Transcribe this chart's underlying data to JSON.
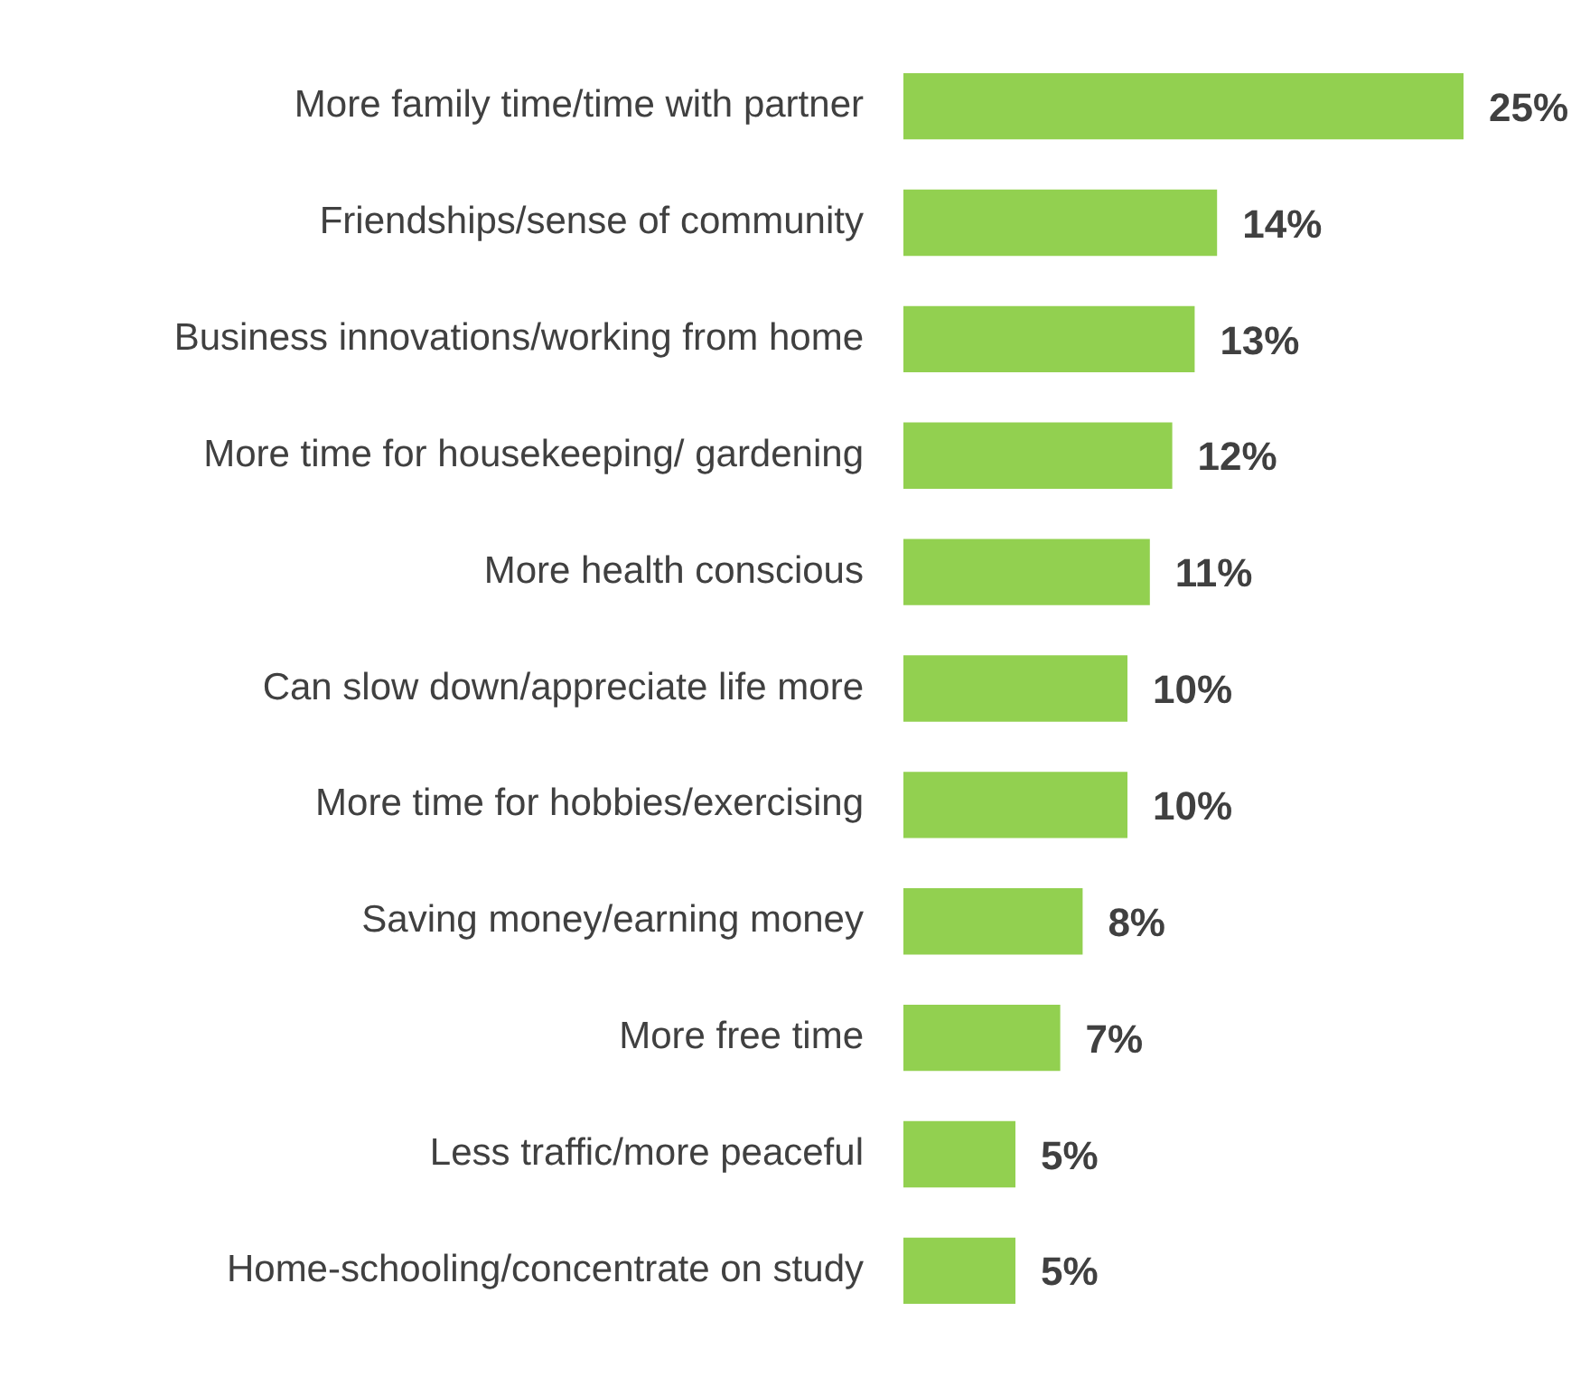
{
  "chart_data": {
    "type": "bar",
    "orientation": "horizontal",
    "categories": [
      "More family time/time with partner",
      "Friendships/sense of community",
      "Business innovations/working from home",
      "More time for housekeeping/ gardening",
      "More health conscious",
      "Can slow down/appreciate life more",
      "More time for hobbies/exercising",
      "Saving money/earning money",
      "More free time",
      "Less traffic/more peaceful",
      "Home-schooling/concentrate on study"
    ],
    "values": [
      25,
      14,
      13,
      12,
      11,
      10,
      10,
      8,
      7,
      5,
      5
    ],
    "value_labels": [
      "25%",
      "14%",
      "13%",
      "12%",
      "11%",
      "10%",
      "10%",
      "8%",
      "7%",
      "5%",
      "5%"
    ],
    "color": "#92d050",
    "legend": false
  }
}
